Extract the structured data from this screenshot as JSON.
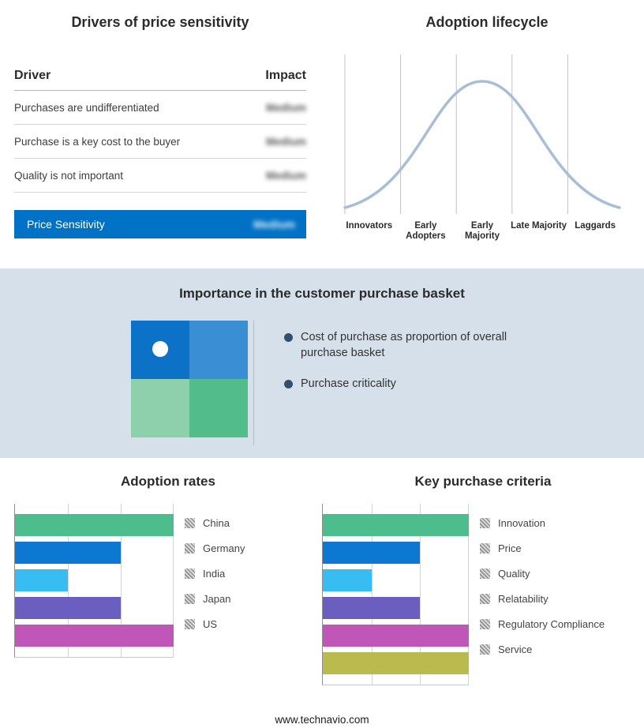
{
  "price_sensitivity": {
    "title": "Drivers of price sensitivity",
    "table": {
      "col_driver": "Driver",
      "col_impact": "Impact",
      "rows": [
        {
          "driver": "Purchases are undifferentiated",
          "impact": "Medium"
        },
        {
          "driver": "Purchase is a key cost to the buyer",
          "impact": "Medium"
        },
        {
          "driver": "Quality is not important",
          "impact": "Medium"
        }
      ]
    },
    "summary": {
      "label": "Price Sensitivity",
      "impact": "Medium",
      "color": "#0072c6"
    }
  },
  "lifecycle": {
    "title": "Adoption lifecycle",
    "curve_color": "#a9bed6",
    "stages": [
      "Innovators",
      "Early Adopters",
      "Early Majority",
      "Late Majority",
      "Laggards"
    ]
  },
  "purchase_basket": {
    "title": "Importance in the customer purchase basket",
    "bullets": [
      "Cost of purchase as proportion of overall purchase basket",
      "Purchase criticality"
    ],
    "matrix_colors": [
      "#0b72c8",
      "#3a8fd4",
      "#8ed0ab",
      "#52bd8a"
    ],
    "dot_quadrant": "top-left"
  },
  "chart_data": [
    {
      "type": "bar",
      "orientation": "horizontal",
      "title": "Adoption rates",
      "categories": [
        "China",
        "Germany",
        "India",
        "Japan",
        "US"
      ],
      "values": [
        3,
        2,
        1,
        2,
        3
      ],
      "colors": [
        "#4dbd8e",
        "#0d78d2",
        "#38bdf2",
        "#6a5fc0",
        "#c057b8"
      ],
      "xlim": [
        0,
        3
      ],
      "grid": true,
      "legend_position": "right"
    },
    {
      "type": "bar",
      "orientation": "horizontal",
      "title": "Key purchase criteria",
      "categories": [
        "Innovation",
        "Price",
        "Quality",
        "Relatability",
        "Regulatory Compliance",
        "Service"
      ],
      "values": [
        3,
        2,
        1,
        2,
        3,
        3
      ],
      "colors": [
        "#4dbd8e",
        "#0d78d2",
        "#38bdf2",
        "#6a5fc0",
        "#c057b8",
        "#b9bb4e"
      ],
      "xlim": [
        0,
        3
      ],
      "grid": true,
      "legend_position": "right"
    }
  ],
  "footer": {
    "site": "www.technavio.com"
  }
}
